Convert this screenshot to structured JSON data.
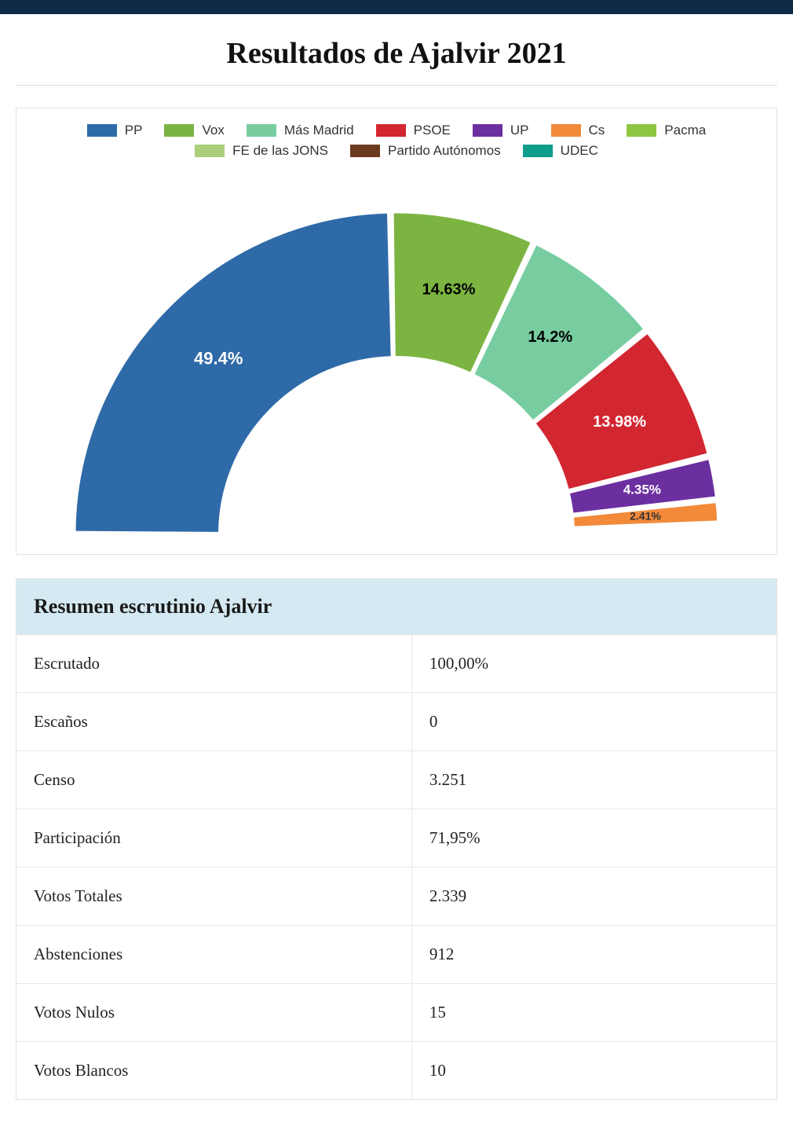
{
  "title": "Resultados de Ajalvir 2021",
  "chart": {
    "type": "half-donut",
    "background_color": "#ffffff",
    "inner_radius_pct": 55,
    "outer_radius_pct": 100,
    "gap_deg": 0.8,
    "stroke_color": "#ffffff",
    "stroke_width": 3,
    "label_font_family": "Arial, Helvetica, sans-serif",
    "parties": [
      {
        "name": "PP",
        "pct": 49.4,
        "color": "#2f6aa8",
        "show_label": true,
        "label_color": "#ffffff",
        "label_fontsize": 22
      },
      {
        "name": "Vox",
        "pct": 14.63,
        "color": "#7bb441",
        "show_label": true,
        "label_color": "#000000",
        "label_fontsize": 20
      },
      {
        "name": "Más Madrid",
        "pct": 14.2,
        "color": "#77cda0",
        "show_label": true,
        "label_color": "#000000",
        "label_fontsize": 20
      },
      {
        "name": "PSOE",
        "pct": 13.98,
        "color": "#d22630",
        "show_label": true,
        "label_color": "#ffffff",
        "label_fontsize": 20
      },
      {
        "name": "UP",
        "pct": 4.35,
        "color": "#6b2fa0",
        "show_label": true,
        "label_color": "#ffffff",
        "label_fontsize": 17
      },
      {
        "name": "Cs",
        "pct": 2.41,
        "color": "#f28a3a",
        "show_label": true,
        "label_color": "#333333",
        "label_fontsize": 14
      },
      {
        "name": "Pacma",
        "pct": 0.6,
        "color": "#8ec641",
        "show_label": false
      },
      {
        "name": "FE de las JONS",
        "pct": 0.2,
        "color": "#a9cf7a",
        "show_label": false
      },
      {
        "name": "Partido Autónomos",
        "pct": 0.13,
        "color": "#6b3b1f",
        "show_label": false
      },
      {
        "name": "UDEC",
        "pct": 0.1,
        "color": "#0f9d8c",
        "show_label": false
      }
    ],
    "legend_fontsize": 17,
    "legend_swatch_w": 38,
    "legend_swatch_h": 16
  },
  "summary": {
    "header": "Resumen escrutinio Ajalvir",
    "header_bg": "#d5e9f2",
    "border_color": "#e2e2e2",
    "row_fontsize": 21,
    "rows": [
      {
        "key": "Escrutado",
        "value": "100,00%"
      },
      {
        "key": "Escaños",
        "value": "0"
      },
      {
        "key": "Censo",
        "value": "3.251"
      },
      {
        "key": "Participación",
        "value": "71,95%"
      },
      {
        "key": "Votos Totales",
        "value": "2.339"
      },
      {
        "key": "Abstenciones",
        "value": "912"
      },
      {
        "key": "Votos Nulos",
        "value": "15"
      },
      {
        "key": "Votos Blancos",
        "value": "10"
      }
    ]
  }
}
